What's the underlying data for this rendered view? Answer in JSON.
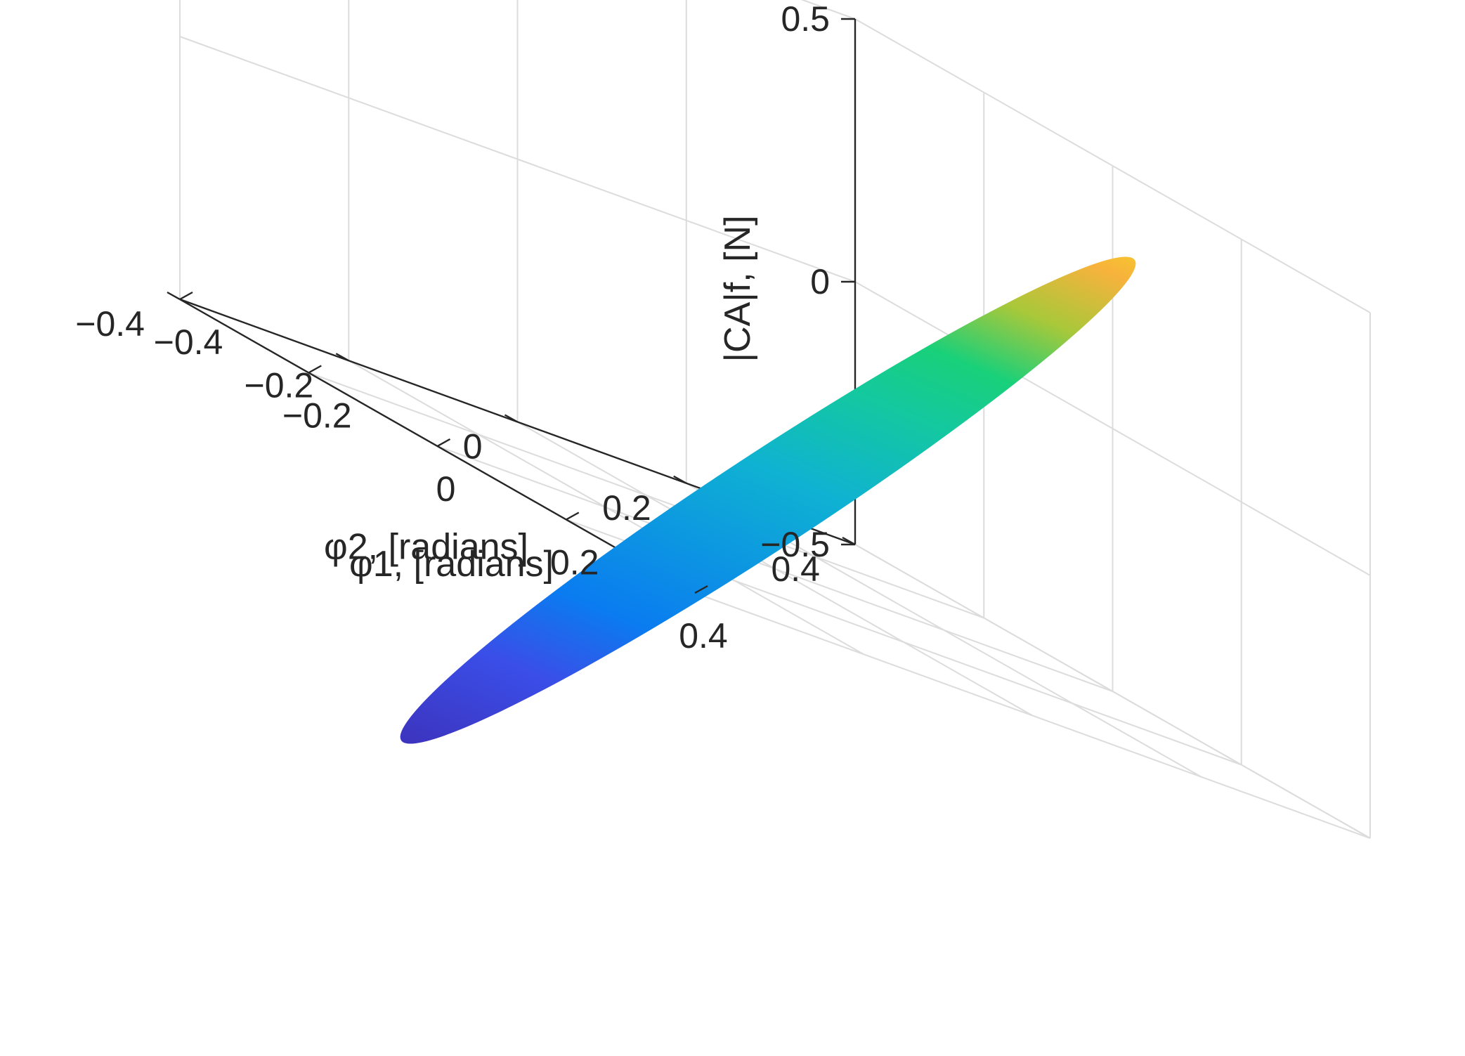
{
  "chart_data": {
    "type": "surface3d",
    "title": "",
    "xlabel": "φ1, [radians]",
    "ylabel": "φ2, [radians]",
    "zlabel": "|CA|f, [N]",
    "xlim": [
      -0.4,
      0.4
    ],
    "ylim": [
      -0.4,
      0.4
    ],
    "zlim": [
      -0.5,
      0.5
    ],
    "xticks": [
      -0.4,
      -0.2,
      0,
      0.2,
      0.4
    ],
    "yticks": [
      -0.4,
      -0.2,
      0,
      0.2,
      0.4
    ],
    "zticks": [
      -0.5,
      0,
      0.5
    ],
    "xtick_labels": [
      "−0.4",
      "−0.2",
      "0",
      "0.2",
      "0.4"
    ],
    "ytick_labels": [
      "−0.4",
      "−0.2",
      "0",
      "0.2",
      "0.4"
    ],
    "ztick_labels": [
      "−0.5",
      "0",
      "0.5"
    ],
    "grid": true,
    "colormap": "parula",
    "surface": {
      "description_shape": "filled elliptical disk (planar surface)",
      "corner_low": {
        "phi1": -0.4,
        "phi2": 0.4,
        "z": -0.5
      },
      "corner_high": {
        "phi1": 0.4,
        "phi2": -0.4,
        "z": 0.5
      }
    },
    "colors": {
      "low": "#3e26a8",
      "mid_low": "#0a7cf0",
      "mid": "#16c8a8",
      "mid_high": "#9ccc3c",
      "high": "#f9fb0e"
    }
  }
}
